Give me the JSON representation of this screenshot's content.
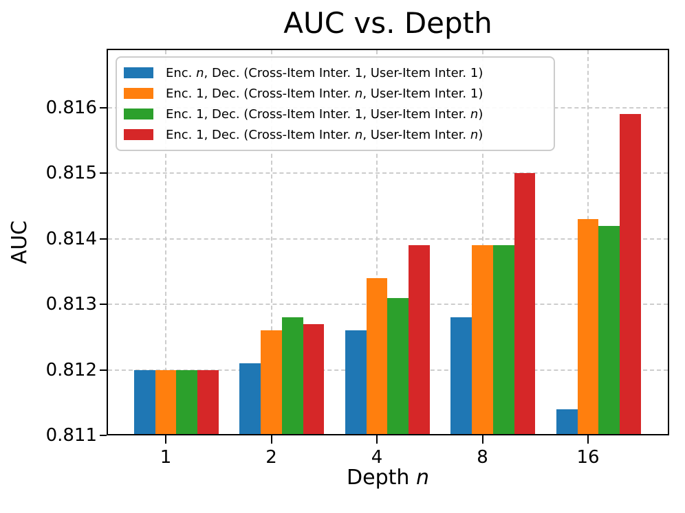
{
  "chart_data": {
    "type": "bar",
    "title": "AUC vs. Depth",
    "xlabel": "Depth n",
    "ylabel": "AUC",
    "categories": [
      "1",
      "2",
      "4",
      "8",
      "16"
    ],
    "ytick_labels": [
      "0.811",
      "0.812",
      "0.813",
      "0.814",
      "0.815",
      "0.816"
    ],
    "ylim": [
      0.811,
      0.8169
    ],
    "grid": {
      "visible": true,
      "style": "dashed",
      "color": "#cccccc"
    },
    "legend_position": "upper left",
    "axis_color": "#000000",
    "series": [
      {
        "name": "Enc. n, Dec. (Cross-Item Inter. 1, User-Item Inter. 1)",
        "color": "#1f77b4",
        "values": [
          0.812,
          0.8121,
          0.8126,
          0.8128,
          0.8114
        ]
      },
      {
        "name": "Enc. 1, Dec. (Cross-Item Inter. n, User-Item Inter. 1)",
        "color": "#ff7f0e",
        "values": [
          0.812,
          0.8126,
          0.8134,
          0.8139,
          0.8143
        ]
      },
      {
        "name": "Enc. 1, Dec. (Cross-Item Inter. 1, User-Item Inter. n)",
        "color": "#2ca02c",
        "values": [
          0.812,
          0.8128,
          0.8131,
          0.8139,
          0.8142
        ]
      },
      {
        "name": "Enc. 1, Dec. (Cross-Item Inter. n, User-Item Inter. n)",
        "color": "#d62728",
        "values": [
          0.812,
          0.8127,
          0.8139,
          0.815,
          0.8159
        ]
      }
    ]
  }
}
